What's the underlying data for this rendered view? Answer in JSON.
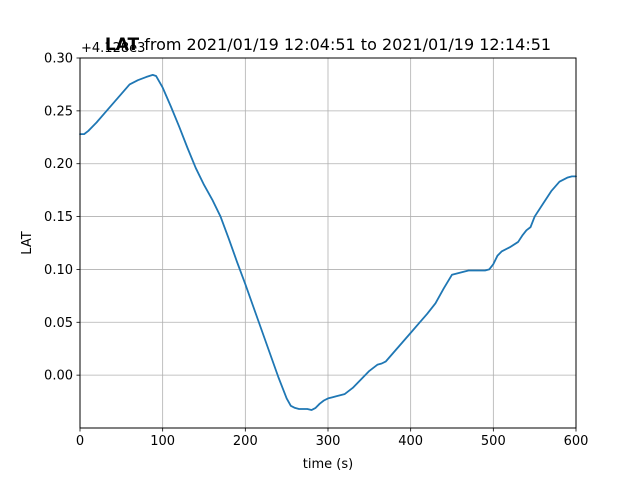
{
  "chart_data": {
    "type": "line",
    "title_bold": "LAT",
    "title_rest": " from 2021/01/19 12:04:51 to 2021/01/19 12:14:51",
    "xlabel": "time (s)",
    "ylabel": "LAT",
    "y_offset_label": "+4.128e3",
    "xlim": [
      0,
      600
    ],
    "ylim": [
      -0.05,
      0.3
    ],
    "x_ticks": [
      0,
      100,
      200,
      300,
      400,
      500,
      600
    ],
    "x_tick_labels": [
      "0",
      "100",
      "200",
      "300",
      "400",
      "500",
      "600"
    ],
    "y_ticks": [
      0.0,
      0.05,
      0.1,
      0.15,
      0.2,
      0.25,
      0.3
    ],
    "y_tick_labels": [
      "0.00",
      "0.05",
      "0.10",
      "0.15",
      "0.20",
      "0.25",
      "0.30"
    ],
    "grid": true,
    "series": [
      {
        "color": "#1f77b4",
        "x": [
          0,
          5,
          10,
          20,
          30,
          40,
          50,
          60,
          70,
          80,
          88,
          92,
          100,
          110,
          120,
          130,
          140,
          150,
          160,
          170,
          180,
          190,
          200,
          210,
          220,
          230,
          240,
          250,
          255,
          260,
          265,
          270,
          275,
          280,
          285,
          290,
          295,
          300,
          305,
          310,
          320,
          330,
          340,
          350,
          360,
          365,
          370,
          380,
          390,
          400,
          410,
          420,
          430,
          440,
          450,
          460,
          470,
          480,
          490,
          495,
          500,
          505,
          510,
          520,
          530,
          535,
          540,
          545,
          550,
          560,
          570,
          580,
          590,
          595,
          600
        ],
        "y": [
          0.228,
          0.228,
          0.231,
          0.239,
          0.248,
          0.257,
          0.266,
          0.275,
          0.279,
          0.282,
          0.284,
          0.283,
          0.272,
          0.254,
          0.235,
          0.215,
          0.196,
          0.18,
          0.166,
          0.15,
          0.129,
          0.107,
          0.086,
          0.064,
          0.042,
          0.02,
          -0.002,
          -0.022,
          -0.029,
          -0.031,
          -0.032,
          -0.032,
          -0.032,
          -0.033,
          -0.031,
          -0.027,
          -0.024,
          -0.022,
          -0.021,
          -0.02,
          -0.018,
          -0.012,
          -0.004,
          0.004,
          0.01,
          0.011,
          0.013,
          0.022,
          0.031,
          0.04,
          0.049,
          0.058,
          0.068,
          0.082,
          0.095,
          0.097,
          0.099,
          0.099,
          0.099,
          0.1,
          0.105,
          0.113,
          0.117,
          0.121,
          0.126,
          0.132,
          0.137,
          0.14,
          0.15,
          0.162,
          0.174,
          0.183,
          0.187,
          0.188,
          0.188
        ]
      }
    ]
  }
}
